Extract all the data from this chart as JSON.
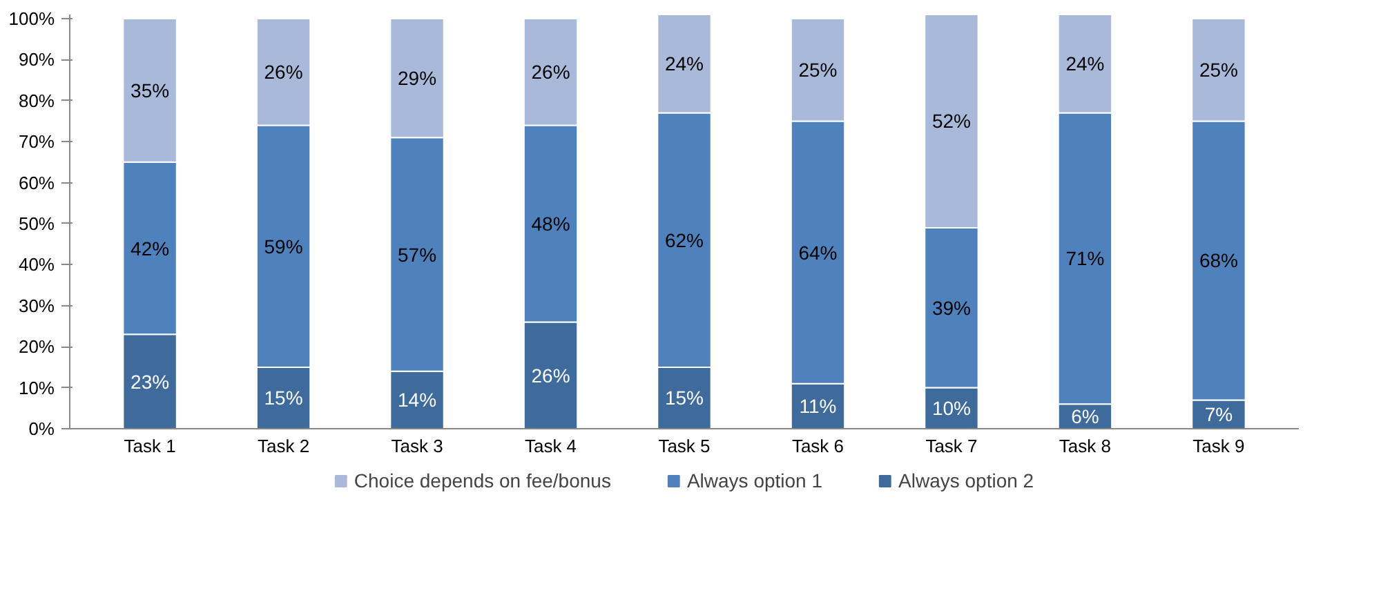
{
  "chart_data": {
    "type": "bar",
    "stacked": true,
    "categories": [
      "Task 1",
      "Task 2",
      "Task 3",
      "Task 4",
      "Task 5",
      "Task 6",
      "Task 7",
      "Task 8",
      "Task 9"
    ],
    "series": [
      {
        "name": "Always option 2",
        "color": "#3f6b9c",
        "values": [
          23,
          15,
          14,
          26,
          15,
          11,
          10,
          6,
          7
        ],
        "value_labels": [
          "23%",
          "15%",
          "14%",
          "26%",
          "15%",
          "11%",
          "10%",
          "6%",
          "7%"
        ]
      },
      {
        "name": "Always option 1",
        "color": "#4f81bd",
        "values": [
          42,
          59,
          57,
          48,
          62,
          64,
          39,
          71,
          68
        ],
        "value_labels": [
          "42%",
          "59%",
          "57%",
          "48%",
          "62%",
          "64%",
          "39%",
          "71%",
          "68%"
        ]
      },
      {
        "name": "Choice depends on fee/bonus",
        "color": "#a9b9d9",
        "values": [
          35,
          26,
          29,
          26,
          24,
          25,
          52,
          24,
          25
        ],
        "value_labels": [
          "35%",
          "26%",
          "29%",
          "26%",
          "24%",
          "25%",
          "52%",
          "24%",
          "25%"
        ]
      }
    ],
    "ylim": [
      0,
      101
    ],
    "yticks": [
      {
        "value": 0,
        "label": "0%"
      },
      {
        "value": 10,
        "label": "10%"
      },
      {
        "value": 20,
        "label": "20%"
      },
      {
        "value": 30,
        "label": "30%"
      },
      {
        "value": 40,
        "label": "40%"
      },
      {
        "value": 50,
        "label": "50%"
      },
      {
        "value": 60,
        "label": "60%"
      },
      {
        "value": 70,
        "label": "70%"
      },
      {
        "value": 80,
        "label": "80%"
      },
      {
        "value": 90,
        "label": "90%"
      },
      {
        "value": 100,
        "label": "100%"
      }
    ],
    "legend": "bottom"
  }
}
